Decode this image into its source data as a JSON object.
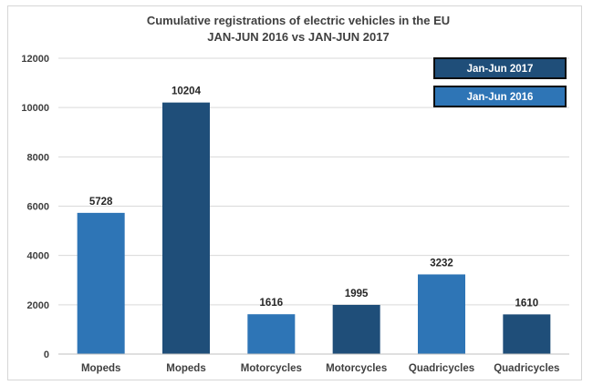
{
  "chart_data": {
    "type": "bar",
    "title": "Cumulative registrations of electric vehicles in the EU",
    "subtitle": "JAN-JUN 2016 vs JAN-JUN 2017",
    "categories": [
      "Mopeds",
      "Mopeds",
      "Motorcycles",
      "Motorcycles",
      "Quadricycles",
      "Quadricycles"
    ],
    "values": [
      5728,
      10204,
      1616,
      1995,
      3232,
      1610
    ],
    "bar_series": [
      "Jan-Jun 2016",
      "Jan-Jun 2017",
      "Jan-Jun 2016",
      "Jan-Jun 2017",
      "Jan-Jun 2016",
      "Jan-Jun 2017"
    ],
    "series": [
      {
        "name": "Jan-Jun 2017",
        "color": "#1f4e79"
      },
      {
        "name": "Jan-Jun 2016",
        "color": "#2e75b6"
      }
    ],
    "ylim": [
      0,
      12000
    ],
    "yticks": [
      0,
      2000,
      4000,
      6000,
      8000,
      10000,
      12000
    ],
    "grid": true,
    "legend": "top-right",
    "xlabel": "",
    "ylabel": ""
  }
}
